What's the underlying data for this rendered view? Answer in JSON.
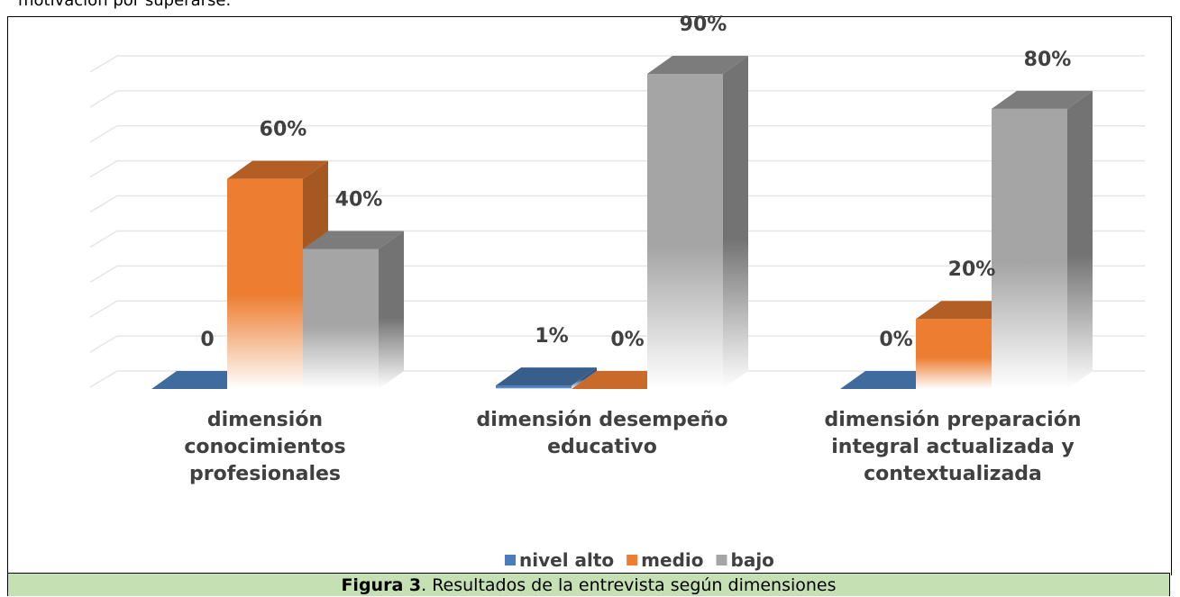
{
  "page": {
    "intro": "motivación por superarse.",
    "caption": {
      "label": "Figura 3",
      "text": ". Resultados de la entrevista según dimensiones"
    }
  },
  "chart_data": {
    "type": "bar3d",
    "categories": [
      "dimensión conocimientos profesionales",
      "dimensión desempeño educativo",
      "dimensión preparación integral actualizada y contextualizada"
    ],
    "series": [
      {
        "name": "nivel alto",
        "color": "#4a7ebb",
        "values": [
          0,
          1,
          0
        ],
        "value_labels": [
          "0",
          "1%",
          "0%"
        ]
      },
      {
        "name": "medio",
        "color": "#ed7d31",
        "values": [
          60,
          0,
          20
        ],
        "value_labels": [
          "60%",
          "0%",
          "20%"
        ]
      },
      {
        "name": "bajo",
        "color": "#a5a5a5",
        "values": [
          40,
          90,
          80
        ],
        "value_labels": [
          "40%",
          "90%",
          "80%"
        ]
      }
    ],
    "ylim": [
      0,
      90
    ],
    "yticks": [
      0,
      10,
      20,
      30,
      40,
      50,
      60,
      70,
      80,
      90
    ],
    "grid": true,
    "legend": "bottom"
  }
}
